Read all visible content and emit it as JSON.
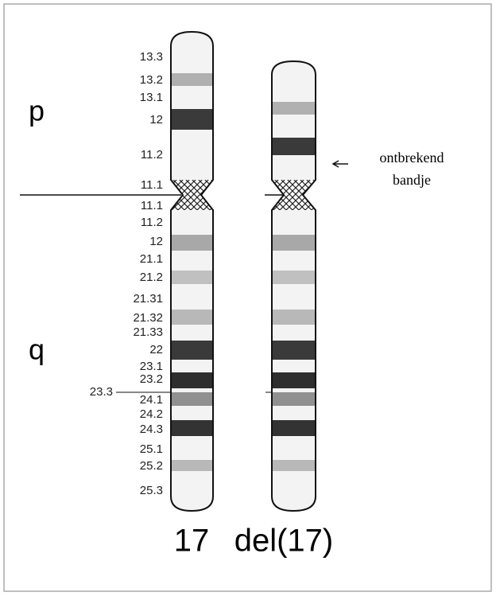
{
  "arms": {
    "p": "p",
    "q": "q"
  },
  "bands": [
    "13.3",
    "13.2",
    "13.1",
    "12",
    "11.2",
    "11.1",
    "11.1",
    "11.2",
    "12",
    "21.1",
    "21.2",
    "21.31",
    "21.32",
    "21.33",
    "22",
    "23.1",
    "23.2",
    "23.3",
    "24.1",
    "24.2",
    "24.3",
    "25.1",
    "25.2",
    "25.3"
  ],
  "chromosomes": [
    "17",
    "del(17)"
  ],
  "annotation": [
    "ontbrekend",
    "bandje"
  ]
}
